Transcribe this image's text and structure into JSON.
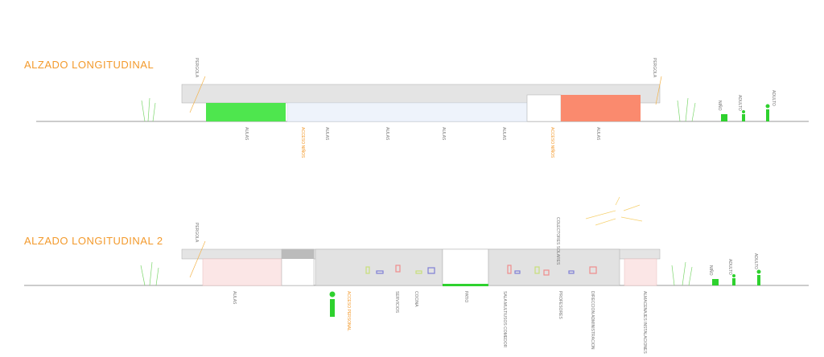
{
  "elevations": [
    {
      "title": "ALZADO LONGITUDINAL",
      "pergolas": [
        "PERGOLA",
        "PERGOLA"
      ],
      "labels": [
        "AULAS",
        "ACCESO NIÑOS",
        "AULAS",
        "AULAS",
        "AULAS",
        "AULAS",
        "ACCESO NIÑOS",
        "AULAS"
      ],
      "people": [
        "NIÑO",
        "ADULTO",
        "ADULTO"
      ]
    },
    {
      "title": "ALZADO LONGITUDINAL 2",
      "pergolas": [
        "PERGOLA"
      ],
      "solar": "COLECTORES SOLARES",
      "labels": [
        "AULAS",
        "ACCESO PERSONAL",
        "SERVICIOS",
        "COCINA",
        "PATIO",
        "SALA MULTIUSOS COMEDOR",
        "PROFESORES",
        "DIRECCION ADMINISTRACION",
        "ALMACENAJES INSTALACIONES"
      ],
      "people": [
        "NIÑO",
        "ADULTO",
        "ADULTO"
      ]
    }
  ]
}
